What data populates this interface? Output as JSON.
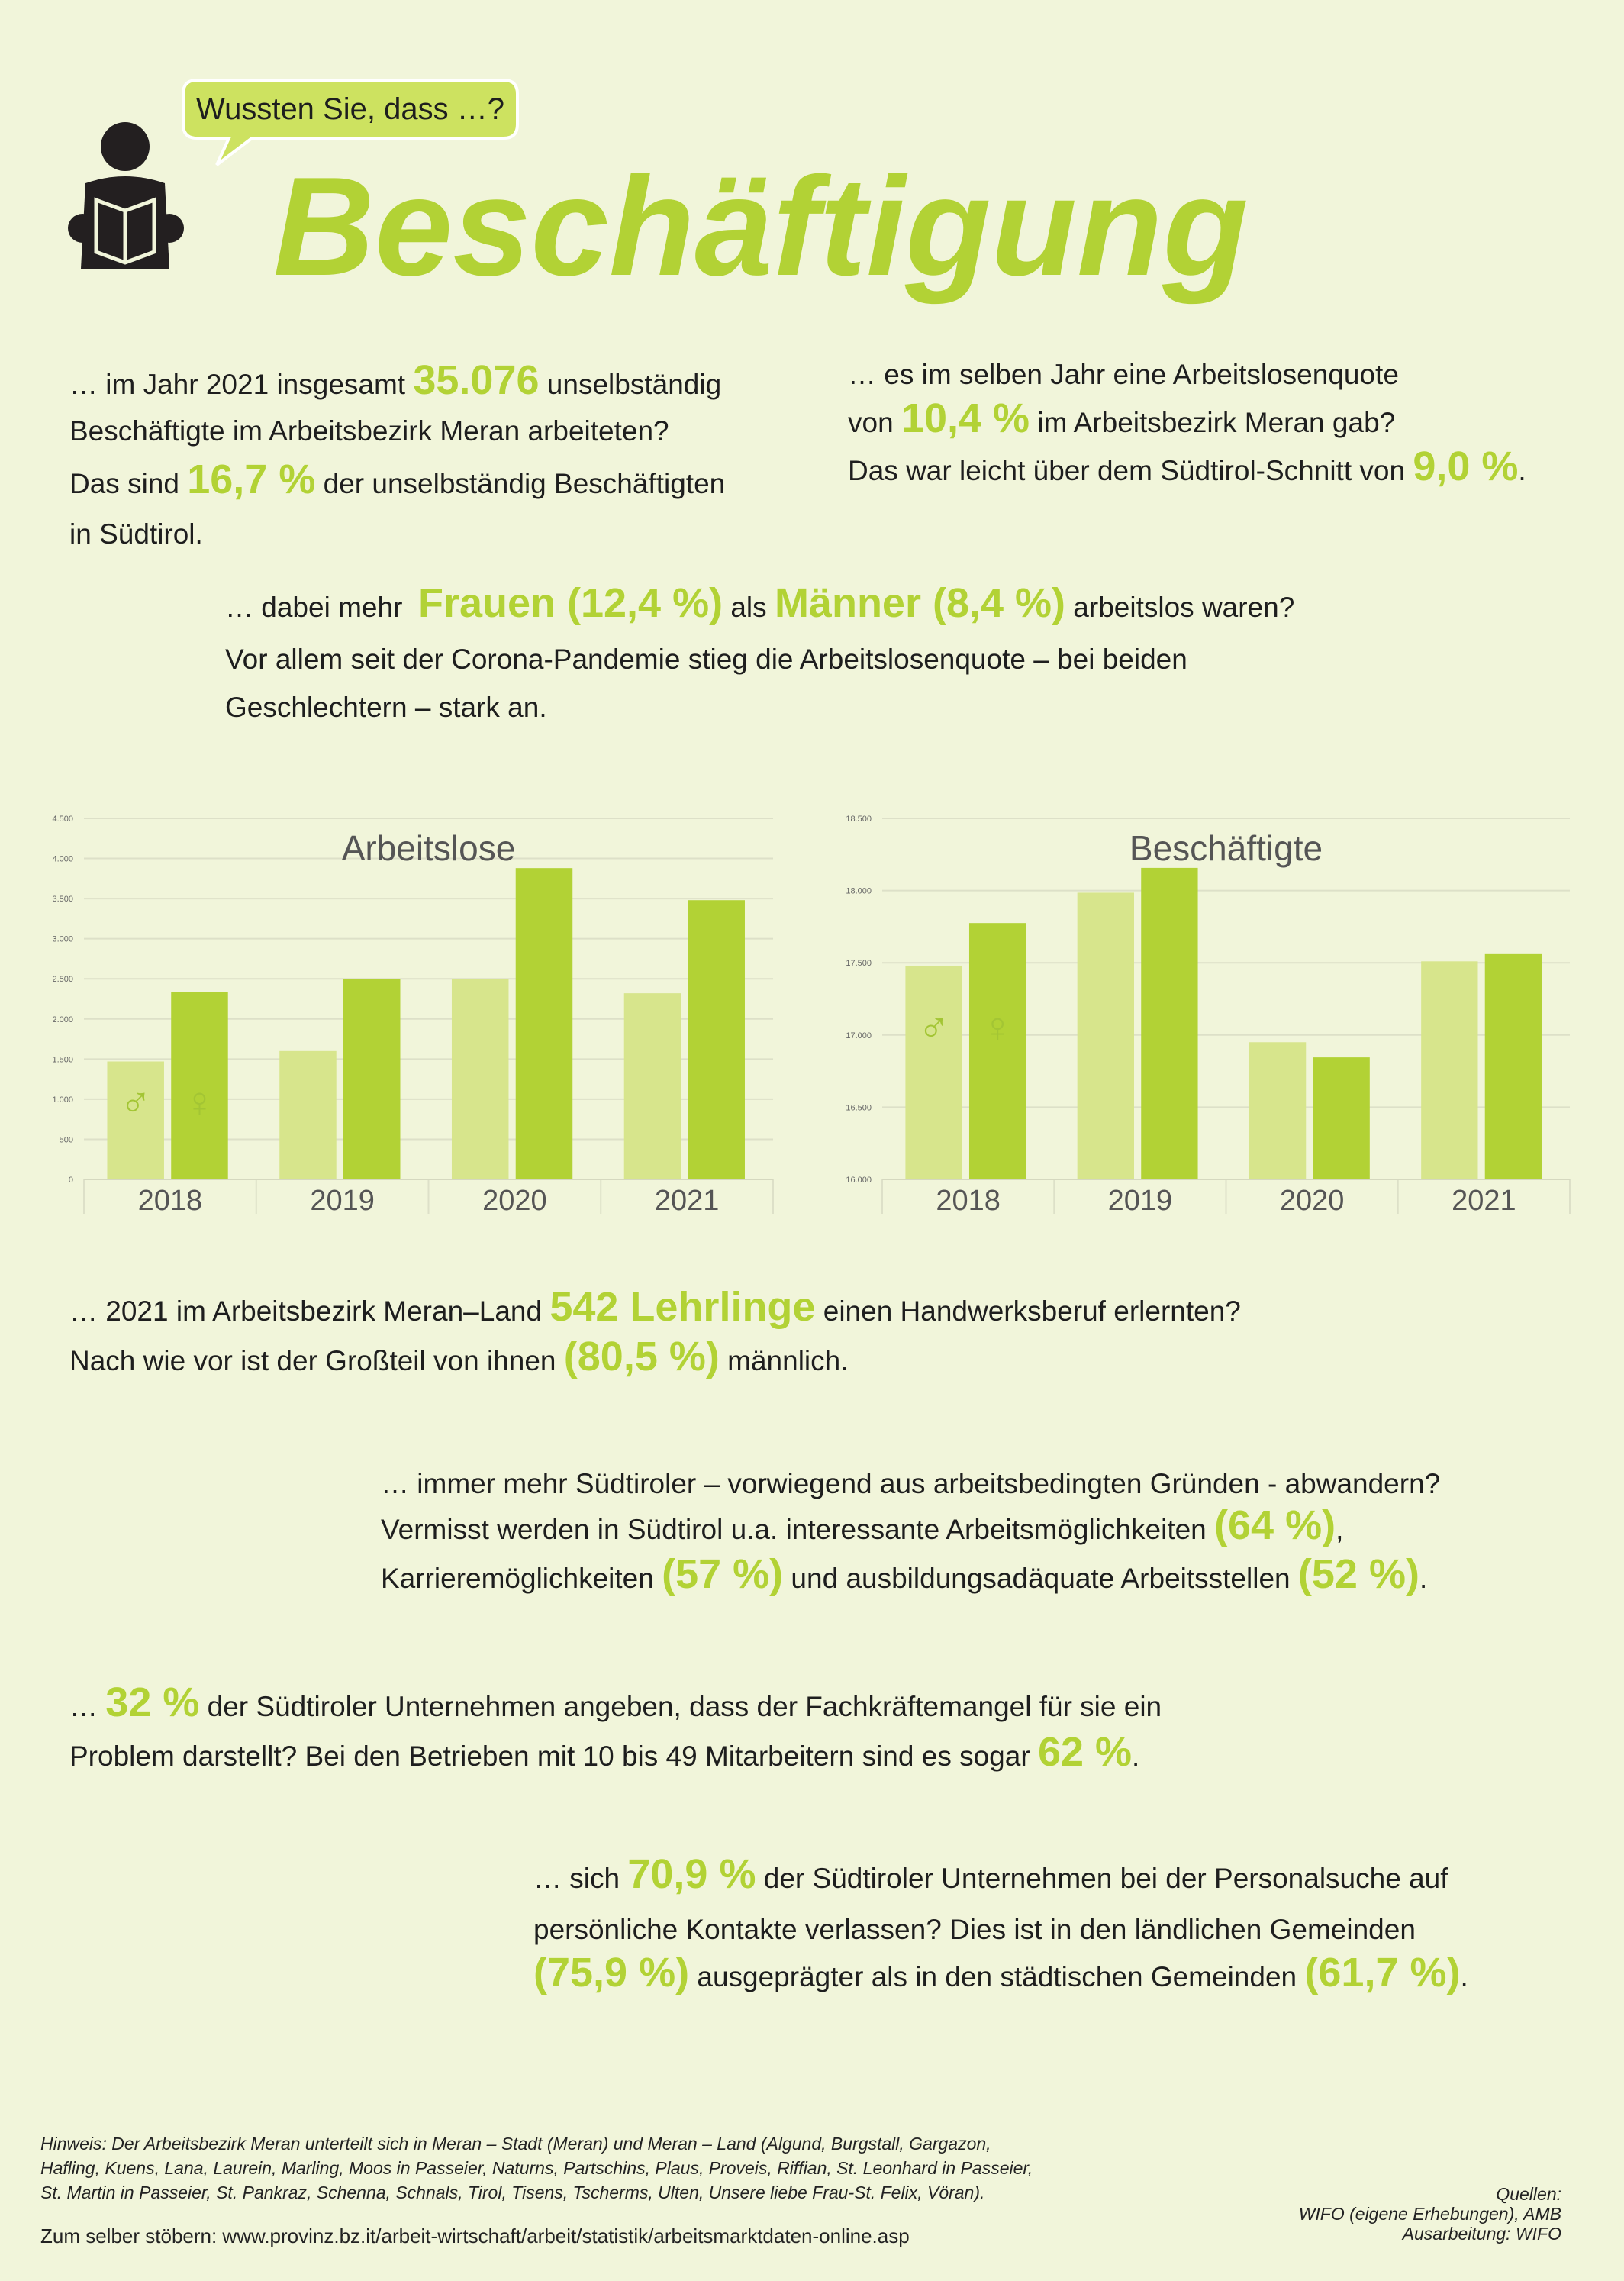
{
  "header": {
    "bubble": "Wussten Sie, dass …?",
    "title": "Beschäftigung"
  },
  "facts": [
    {
      "lines": [
        [
          "… im Jahr 2021 insgesamt ",
          {
            "text": "35.076",
            "highlight": true
          },
          " unselbständig"
        ],
        [
          "Beschäftigte im Arbeitsbezirk Meran arbeiteten?"
        ],
        [
          "Das sind ",
          {
            "text": "16,7 %",
            "highlight": true
          },
          " der unselbständig Beschäftigten"
        ],
        [
          "in Südtirol."
        ]
      ]
    },
    {
      "lines": [
        [
          "… es im selben Jahr eine Arbeitslosenquote"
        ],
        [
          "von ",
          {
            "text": "10,4 %",
            "highlight": true
          },
          " im Arbeitsbezirk Meran gab?"
        ],
        [
          "Das war leicht über dem Südtirol-Schnitt von ",
          {
            "text": "9,0 %",
            "highlight": true
          },
          "."
        ]
      ]
    },
    {
      "lines": [
        [
          "… dabei mehr  ",
          {
            "text": "Frauen (12,4 %)",
            "highlight": true
          },
          " als ",
          {
            "text": "Männer (8,4 %)",
            "highlight": true
          },
          " arbeitslos waren?"
        ],
        [
          "Vor allem seit der Corona-Pandemie stieg die Arbeitslosenquote – bei beiden"
        ],
        [
          "Geschlechtern – stark an."
        ]
      ]
    },
    {
      "lines": [
        [
          "… 2021 im Arbeitsbezirk Meran–Land ",
          {
            "text": "542 Lehrlinge",
            "highlight": true
          },
          " einen Handwerksberuf erlernten?"
        ],
        [
          "Nach wie vor ist der Großteil von ihnen ",
          {
            "text": "(80,5 %)",
            "highlight": true
          },
          " männlich."
        ]
      ]
    },
    {
      "lines": [
        [
          "… immer mehr Südtiroler – vorwiegend aus arbeitsbedingten Gründen - abwandern?"
        ],
        [
          "Vermisst werden in Südtirol u.a. interessante Arbeitsmöglichkeiten ",
          {
            "text": "(64 %)",
            "highlight": true
          },
          ","
        ],
        [
          "Karrieremöglichkeiten ",
          {
            "text": "(57 %)",
            "highlight": true
          },
          " und ausbildungsadäquate Arbeitsstellen ",
          {
            "text": "(52 %)",
            "highlight": true
          },
          "."
        ]
      ]
    },
    {
      "lines": [
        [
          "… ",
          {
            "text": "32 %",
            "highlight": true
          },
          " der Südtiroler Unternehmen angeben, dass der Fachkräftemangel für sie ein"
        ],
        [
          "Problem darstellt? Bei den Betrieben mit 10 bis 49 Mitarbeitern sind es sogar ",
          {
            "text": "62 %",
            "highlight": true
          },
          "."
        ]
      ]
    },
    {
      "lines": [
        [
          "… sich ",
          {
            "text": "70,9 %",
            "highlight": true
          },
          " der Südtiroler Unternehmen bei der Personalsuche auf"
        ],
        [
          "persönliche Kontakte verlassen? Dies ist in den ländlichen Gemeinden"
        ],
        [
          {
            "text": "(75,9 %)",
            "highlight": true
          },
          " ausgeprägter als in den städtischen Gemeinden ",
          {
            "text": "(61,7 %)",
            "highlight": true
          },
          "."
        ]
      ]
    }
  ],
  "chart_data": [
    {
      "type": "bar",
      "title": "Arbeitslose",
      "categories": [
        "2018",
        "2019",
        "2020",
        "2021"
      ],
      "series": [
        {
          "name": "♂",
          "color": "#d7e58c",
          "values": [
            1470,
            1600,
            2500,
            2320
          ]
        },
        {
          "name": "♀",
          "color": "#b2d235",
          "values": [
            2340,
            2500,
            3880,
            3480
          ]
        }
      ],
      "ylim": [
        0,
        4500
      ],
      "yticks": [
        0,
        {
          "value": 500,
          "label": "500"
        },
        {
          "value": 1000,
          "label": "1.000"
        },
        {
          "value": 1500,
          "label": "1.500"
        },
        {
          "value": 2000,
          "label": "2.000"
        },
        {
          "value": 2500,
          "label": "2.500"
        },
        {
          "value": 3000,
          "label": "3.000"
        },
        {
          "value": 3500,
          "label": "3.500"
        },
        {
          "value": 4000,
          "label": "4.000"
        },
        {
          "value": 4500,
          "label": "4.500"
        }
      ],
      "grid": true
    },
    {
      "type": "bar",
      "title": "Beschäftigte",
      "categories": [
        "2018",
        "2019",
        "2020",
        "2021"
      ],
      "series": [
        {
          "name": "♂",
          "color": "#d7e58c",
          "values": [
            17480,
            17985,
            16950,
            17510
          ]
        },
        {
          "name": "♀",
          "color": "#b2d235",
          "values": [
            17775,
            18157,
            16845,
            17560
          ]
        }
      ],
      "ylim": [
        16000,
        18500
      ],
      "yticks": [
        {
          "value": 16000,
          "label": "16.000"
        },
        {
          "value": 16500,
          "label": "16.500"
        },
        {
          "value": 17000,
          "label": "17.000"
        },
        {
          "value": 17500,
          "label": "17.500"
        },
        {
          "value": 18000,
          "label": "18.000"
        },
        {
          "value": 18500,
          "label": "18.500"
        }
      ],
      "grid": true
    }
  ],
  "footer": {
    "note": [
      "Hinweis: Der Arbeitsbezirk Meran unterteilt sich in Meran – Stadt (Meran) und Meran – Land (Algund, Burgstall, Gargazon,",
      "Hafling, Kuens, Lana, Laurein, Marling, Moos in Passeier, Naturns, Partschins, Plaus, Proveis, Riffian, St. Leonhard in Passeier,",
      "St. Martin in Passeier, St. Pankraz, Schenna, Schnals, Tirol, Tisens, Tscherms, Ulten, Unsere liebe Frau-St. Felix, Vöran)."
    ],
    "link": "Zum selber stöbern: www.provinz.bz.it/arbeit-wirtschaft/arbeit/statistik/arbeitsmarktdaten-online.asp",
    "sources": [
      "Quellen:",
      "WIFO (eigene Erhebungen), AMB",
      "Ausarbeitung: WIFO"
    ]
  }
}
